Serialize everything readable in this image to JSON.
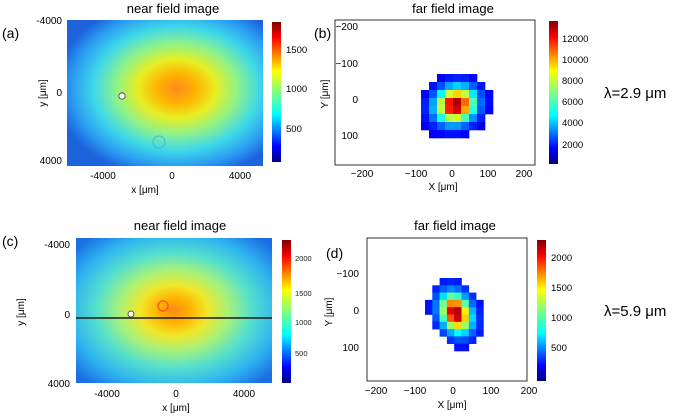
{
  "rows": [
    {
      "near": {
        "panel_label": "(a)",
        "title": "near field image",
        "xlabel": "x [μm]",
        "ylabel": "y [μm]",
        "x_ticks": [
          "-4000",
          "0",
          "4000"
        ],
        "y_ticks": [
          "-4000",
          "0",
          "4000"
        ],
        "colorbar_ticks": [
          "1500",
          "1000",
          "500"
        ],
        "has_line": false
      },
      "far": {
        "panel_label": "(b)",
        "title": "far field image",
        "xlabel": "X [μm]",
        "ylabel": "Y [μm]",
        "x_ticks": [
          "−200",
          "−100",
          "0",
          "100",
          "200"
        ],
        "y_ticks": [
          "−200",
          "−100",
          "0",
          "100"
        ],
        "colorbar_ticks": [
          "12000",
          "10000",
          "8000",
          "6000",
          "4000",
          "2000"
        ]
      },
      "wavelength_label": "λ=2.9 μm"
    },
    {
      "near": {
        "panel_label": "(c)",
        "title": "near field image",
        "xlabel": "x [μm]",
        "ylabel": "y [μm]",
        "x_ticks": [
          "-4000",
          "0",
          "4000"
        ],
        "y_ticks": [
          "-4000",
          "0",
          "4000"
        ],
        "colorbar_ticks": [
          "2000",
          "1500",
          "1000",
          "500"
        ],
        "has_line": true
      },
      "far": {
        "panel_label": "(d)",
        "title": "far field image",
        "xlabel": "X [μm]",
        "ylabel": "Y [μm]",
        "x_ticks": [
          "−200",
          "−100",
          "0",
          "100",
          "200"
        ],
        "y_ticks": [
          "−100",
          "0",
          "100"
        ],
        "colorbar_ticks": [
          "2000",
          "1500",
          "1000",
          "500"
        ]
      },
      "wavelength_label": "λ=5.9 μm"
    }
  ],
  "colors": {
    "jet": [
      "#00007f",
      "#0000ff",
      "#007fff",
      "#00ffff",
      "#7fff7f",
      "#ffff00",
      "#ff7f00",
      "#ff0000",
      "#7f0000"
    ]
  }
}
